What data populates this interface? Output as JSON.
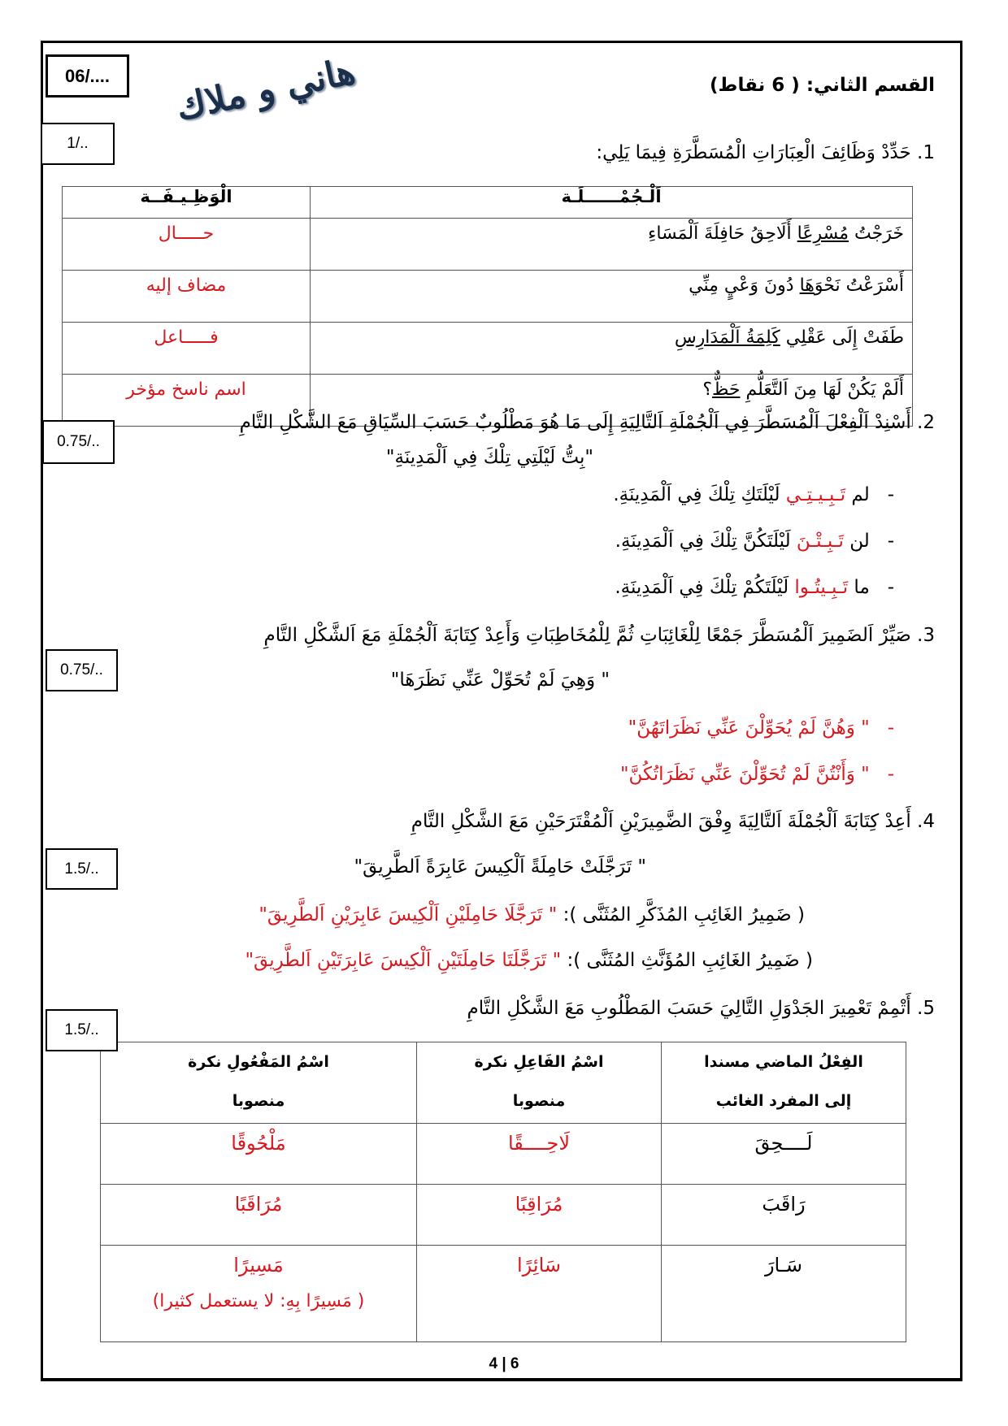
{
  "header": {
    "score_box": "06/....",
    "student_names": "هاني و ملاك",
    "section_title": "القسم الثاني: ( 6 نقاط)"
  },
  "q1": {
    "points": "1/..",
    "prompt": "1. حَدِّدْ وَظَائِفَ الْعِبَارَاتِ الْمُسَطَّرَةِ فِيمَا يَلِي:",
    "headers": {
      "sentence": "اَلْـجُمْــــــلَـة",
      "function": "الْوَظِـيـفَــة"
    },
    "rows": [
      {
        "before": "خَرَجْتُ ",
        "underlined": "مُسْرِعًا",
        "after": " أَلَاحِقُ حَافِلَةَ اَلْمَسَاءِ",
        "answer": "حـــــال"
      },
      {
        "before": "أَسْرَعْتُ نَحْوَ",
        "underlined": "هَا",
        "after": " دُونَ وَعْيٍ مِنِّي",
        "answer": "مضاف إليه"
      },
      {
        "before": "طَفَتْ إِلَى عَقْلِي ",
        "underlined": "كَلِمَةُ اَلْمَدَارِسِ",
        "after": "",
        "answer": "فـــــاعل"
      },
      {
        "before": "أَلَمْ يَكُنْ لَهَا مِنَ اَلتَّعَلُّمِ ",
        "underlined": "حَظٌّ",
        "after": "؟",
        "answer": "اسم ناسخ مؤخر"
      }
    ]
  },
  "q2": {
    "points": "0.75/..",
    "prompt": "2. أَسْنِدْ اَلْفِعْلَ اَلْمُسَطَّرَ فِي اَلْجُمْلَةِ اَلتَّالِيَةِ إِلَى مَا هُوَ مَطْلُوبٌ حَسَبَ السِّيَاقِ مَعَ الشَّكْلِ التَّامِ",
    "quote": "\"بِتُّ لَيْلَتِي تِلْكَ فِي اَلْمَدِينَةِ\"",
    "answers": [
      {
        "particle": "لم ",
        "verb": "تَـبِـيـتِـي",
        "rest": " لَيْلَتَكِ تِلْكَ فِي اَلْمَدِينَةِ."
      },
      {
        "particle": "لن ",
        "verb": "تَـبِـتْـنَ",
        "rest": " لَيْلَتَكُنَّ تِلْكَ فِي اَلْمَدِينَةِ."
      },
      {
        "particle": "ما ",
        "verb": "تَـبِـيتُـوا",
        "rest": " لَيْلَتَكُمْ تِلْكَ فِي اَلْمَدِينَةِ."
      }
    ]
  },
  "q3": {
    "points": "0.75/..",
    "prompt": "3. صَيِّرْ اَلضَمِيرَ اَلْمُسَطَّرَ جَمْعًا لِلْغَائِبَاتِ ثُمَّ لِلْمُخَاطِبَاتِ وَأَعِدْ كِتَابَةَ اَلْجُمْلَةِ مَعَ اَلشَّكْلِ التَّامِ",
    "quote": "\" وَهِيَ لَمْ تُحَوِّلْ عَنِّي نَظَرَهَا\"",
    "answers": [
      "\" وَهُنَّ  لَمْ يُحَوِّلْنَ عَنِّي نَظَرَاتَهُنَّ\"",
      "\" وَأَنْتُنَّ لَمْ تُحَوِّلْنَ عَنِّي نَظَرَاتُكُنَّ\""
    ]
  },
  "q4": {
    "points": "1.5/..",
    "prompt": "4. أَعِدْ كِتَابَةَ اَلْجُمْلَةَ اَلتَّالِيَةَ وِفْقَ الضَّمِيرَيْنِ اَلْمُقْتَرَحَيْنِ مَعَ الشَّكْلِ التَّامِ",
    "quote": "\" تَرَجَّلَتْ حَامِلَةً اَلْكِيسَ عَابِرَةً اَلطَّرِيقَ\"",
    "answers": [
      {
        "label": "( ضَمِيرُ الغَائِبِ المُذَكَّرِ المُثَنَّى ): ",
        "answer": "\" تَرَجَّلَا حَامِلَيْنِ اَلْكِيسَ عَابِرَيْنِ اَلطَّرِيقَ\""
      },
      {
        "label": "( ضَمِيرُ الغَائِبِ المُؤَنَّثِ المُثَنَّى ): ",
        "answer": "\" تَرَجَّلَتَا حَامِلَتَيْنِ اَلْكِيسَ عَابِرَتَيْنِ اَلطَّرِيقَ\""
      }
    ]
  },
  "q5": {
    "points": "1.5/..",
    "prompt": "5. أَتْمِمْ تَعْمِيرَ الجَدْوَلِ التَّالِيَ حَسَبَ المَطْلُوبِ مَعَ الشَّكْلِ التَّامِ",
    "headers": [
      {
        "line1": "الفِعْلُ الماضي مسندا",
        "line2": "إلى المفرد الغائب"
      },
      {
        "line1": "اسْمُ الفَاعِلِ نكرة",
        "line2": "منصوبا"
      },
      {
        "line1": "اسْمُ المَفْعُولِ  نكرة",
        "line2": "منصوبا"
      }
    ],
    "rows": [
      {
        "verb": "لَــــحِقَ",
        "active": "لَاحِــــقًا",
        "passive": "مَلْحُوقًا",
        "note": ""
      },
      {
        "verb": "رَاقَبَ",
        "active": "مُرَاقِبًا",
        "passive": "مُرَاقَبًا",
        "note": ""
      },
      {
        "verb": "سَـارَ",
        "active": "سَائِرًا",
        "passive": "مَسِيرًا",
        "note": "( مَسِيرًا بِهِ: لا يستعمل كثيرا)"
      }
    ]
  },
  "footer": {
    "page_number": "4 | 6"
  },
  "colors": {
    "answer": "#d71920",
    "handwriting": "#1c2f4a"
  }
}
